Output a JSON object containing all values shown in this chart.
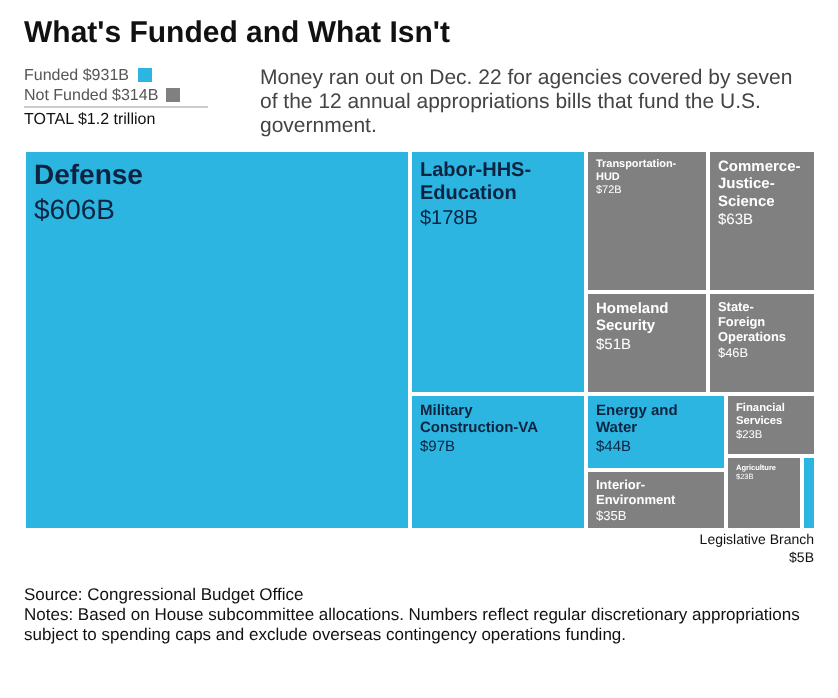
{
  "chart_data": {
    "type": "other",
    "title": "What's Funded and What Isn't",
    "subtitle": "Money ran out on Dec. 22 for agencies covered by seven of the 12 annual appropriations bills that fund the U.S. government.",
    "categories": [
      "Defense",
      "Labor-HHS-Education",
      "Military Construction-VA",
      "Transportation-HUD",
      "Commerce-Justice-Science",
      "Homeland Security",
      "State-Foreign Operations",
      "Energy and Water",
      "Interior-Environment",
      "Financial Services",
      "Agriculture",
      "Legislative Branch"
    ],
    "series": [
      {
        "name": "Funded $931B",
        "color": "#2bb5e0",
        "values": [
          606,
          178,
          97,
          null,
          null,
          null,
          null,
          44,
          null,
          null,
          null,
          5
        ],
        "value_labels": [
          "$606B",
          "$178B",
          "$97B",
          null,
          null,
          null,
          null,
          "$44B",
          null,
          null,
          null,
          "$5B"
        ]
      },
      {
        "name": "Not Funded $314B",
        "color": "#808080",
        "values": [
          null,
          null,
          null,
          72,
          63,
          51,
          46,
          null,
          35,
          23,
          23,
          null
        ],
        "value_labels": [
          null,
          null,
          null,
          "$72B",
          "$63B",
          "$51B",
          "$46B",
          null,
          "$35B",
          "$23B",
          "$23B",
          null
        ]
      }
    ],
    "legend": "top left",
    "annotations": [
      "TOTAL $1.2 trillion",
      "Source: Congressional Budget Office",
      "Notes: Based on House subcommittee allocations. Numbers reflect regular discretionary appropriations subject to spending caps and exclude overseas contingency operations funding."
    ]
  }
}
